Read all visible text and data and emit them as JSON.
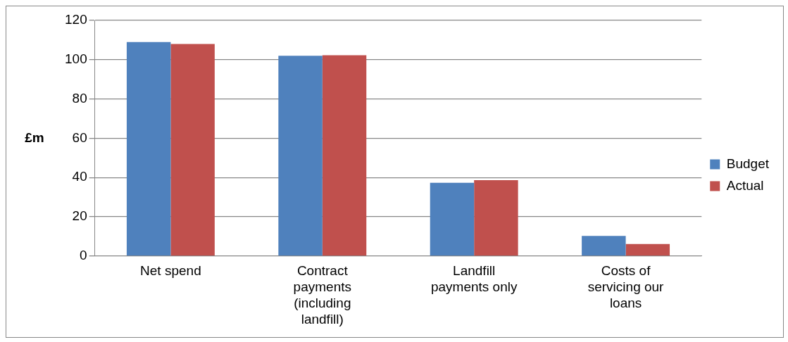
{
  "chart_data": {
    "type": "bar",
    "ylabel": "£m",
    "categories": [
      "Net spend",
      "Contract payments (including landfill)",
      "Landfill payments only",
      "Costs of servicing our loans"
    ],
    "series": [
      {
        "name": "Budget",
        "color": "#4f81bd",
        "values": [
          109,
          102,
          37.3,
          10.2
        ]
      },
      {
        "name": "Actual",
        "color": "#c0504d",
        "values": [
          108,
          102.3,
          38.6,
          6.1
        ]
      }
    ],
    "ylim": [
      0,
      120
    ],
    "yticks": [
      0,
      20,
      40,
      60,
      80,
      100,
      120
    ],
    "grid": "y",
    "legend": "right"
  }
}
